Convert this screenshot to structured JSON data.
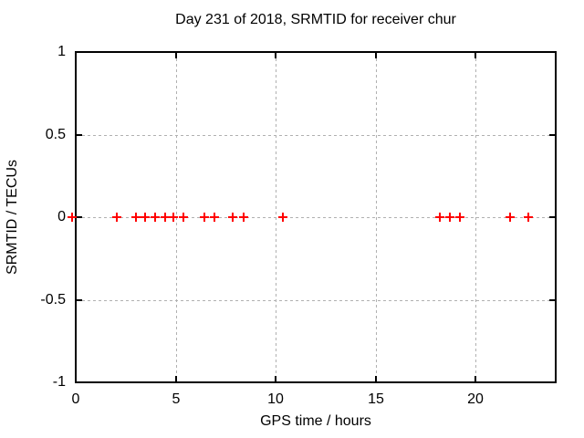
{
  "chart_data": {
    "type": "scatter",
    "title": "Day 231 of 2018, SRMTID for receiver chur",
    "xlabel": "GPS time / hours",
    "ylabel": "SRMTID / TECUs",
    "xlim": [
      0,
      24
    ],
    "ylim": [
      -1,
      1
    ],
    "xticks": [
      {
        "value": 0,
        "label": "0"
      },
      {
        "value": 5,
        "label": "5"
      },
      {
        "value": 10,
        "label": "10"
      },
      {
        "value": 15,
        "label": "15"
      },
      {
        "value": 20,
        "label": "20"
      }
    ],
    "yticks": [
      {
        "value": 1,
        "label": "1"
      },
      {
        "value": 0.5,
        "label": "0.5"
      },
      {
        "value": 0,
        "label": "0"
      },
      {
        "value": -0.5,
        "label": "-0.5"
      },
      {
        "value": -1,
        "label": "-1"
      }
    ],
    "grid": true,
    "legend": "none",
    "colors": {
      "background": "#ffffff",
      "axis": "#000000",
      "grid": "#b0b0b0",
      "marker": "#ff0000"
    },
    "series": [
      {
        "marker": "plus",
        "color": "#ff0000",
        "points": [
          {
            "x": -0.2,
            "y": 0
          },
          {
            "x": 2.05,
            "y": 0
          },
          {
            "x": 3.0,
            "y": 0
          },
          {
            "x": 3.45,
            "y": 0
          },
          {
            "x": 3.95,
            "y": 0
          },
          {
            "x": 4.45,
            "y": 0
          },
          {
            "x": 4.9,
            "y": 0
          },
          {
            "x": 5.4,
            "y": 0
          },
          {
            "x": 6.45,
            "y": 0
          },
          {
            "x": 6.95,
            "y": 0
          },
          {
            "x": 7.85,
            "y": 0
          },
          {
            "x": 8.4,
            "y": 0
          },
          {
            "x": 10.35,
            "y": 0
          },
          {
            "x": 18.2,
            "y": 0
          },
          {
            "x": 18.7,
            "y": 0
          },
          {
            "x": 19.2,
            "y": 0
          },
          {
            "x": 21.7,
            "y": 0
          },
          {
            "x": 22.65,
            "y": 0
          }
        ]
      }
    ]
  }
}
